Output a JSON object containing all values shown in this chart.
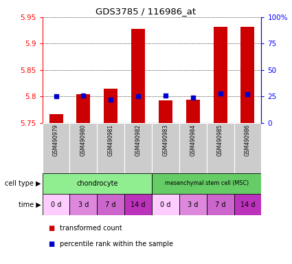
{
  "title": "GDS3785 / 116986_at",
  "samples": [
    "GSM490979",
    "GSM490980",
    "GSM490981",
    "GSM490982",
    "GSM490983",
    "GSM490984",
    "GSM490985",
    "GSM490986"
  ],
  "transformed_count": [
    5.767,
    5.804,
    5.815,
    5.928,
    5.793,
    5.794,
    5.932,
    5.932
  ],
  "percentile_rank": [
    25,
    26,
    22,
    25,
    26,
    24,
    28,
    27
  ],
  "time": [
    "0 d",
    "3 d",
    "7 d",
    "14 d",
    "0 d",
    "3 d",
    "7 d",
    "14 d"
  ],
  "ylim_left": [
    5.75,
    5.95
  ],
  "ylim_right": [
    0,
    100
  ],
  "yticks_left": [
    5.75,
    5.8,
    5.85,
    5.9,
    5.95
  ],
  "yticks_right": [
    0,
    25,
    50,
    75,
    100
  ],
  "ytick_labels_right": [
    "0",
    "25",
    "50",
    "75",
    "100%"
  ],
  "bar_color": "#cc0000",
  "dot_color": "#0000cc",
  "bar_bottom": 5.75,
  "chondrocyte_color": "#90ee90",
  "msc_color": "#66cc66",
  "time_colors": [
    "#ffccff",
    "#dd88dd",
    "#cc66cc",
    "#bb33bb",
    "#ffccff",
    "#dd88dd",
    "#cc66cc",
    "#bb33bb"
  ],
  "sample_bg_color": "#cccccc",
  "legend_red_label": "transformed count",
  "legend_blue_label": "percentile rank within the sample"
}
